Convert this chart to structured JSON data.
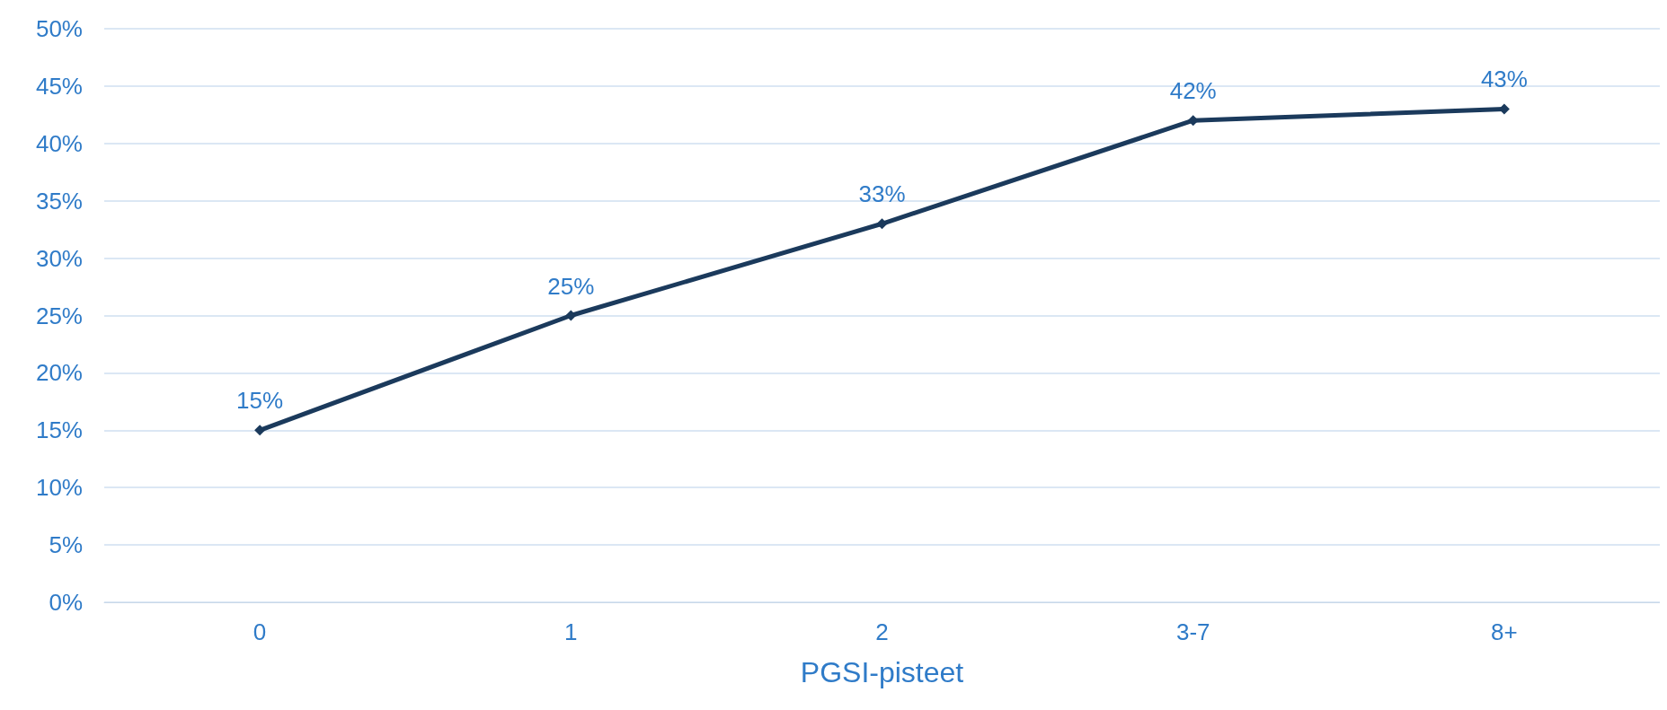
{
  "chart_data": {
    "type": "line",
    "xlabel": "PGSI-pisteet",
    "categories": [
      "0",
      "1",
      "2",
      "3-7",
      "8+"
    ],
    "series": [
      {
        "color": "#1b3a5c",
        "values": [
          15,
          25,
          33,
          42,
          43
        ],
        "value_labels": [
          "15%",
          "25%",
          "33%",
          "42%",
          "43%"
        ]
      }
    ],
    "ylim": [
      0,
      50
    ],
    "yticks": [
      {
        "value": 0,
        "label": "0%"
      },
      {
        "value": 5,
        "label": "5%"
      },
      {
        "value": 10,
        "label": "10%"
      },
      {
        "value": 15,
        "label": "15%"
      },
      {
        "value": 20,
        "label": "20%"
      },
      {
        "value": 25,
        "label": "25%"
      },
      {
        "value": 30,
        "label": "30%"
      },
      {
        "value": 35,
        "label": "35%"
      },
      {
        "value": 40,
        "label": "40%"
      },
      {
        "value": 45,
        "label": "45%"
      },
      {
        "value": 50,
        "label": "50%"
      }
    ],
    "grid": "y",
    "marker": "diamond",
    "line_style": "solid"
  }
}
